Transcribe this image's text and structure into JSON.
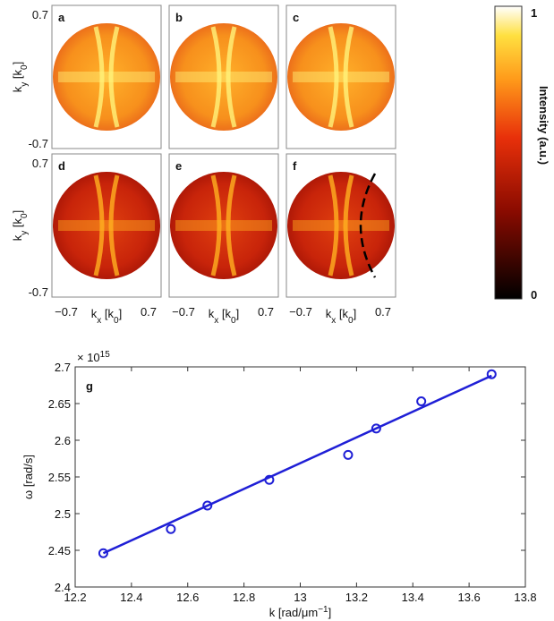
{
  "chart_data": [
    {
      "type": "image-grid",
      "panels": [
        "a",
        "b",
        "c",
        "d",
        "e",
        "f"
      ],
      "xlabel": {
        "text": "k",
        "sub": "x",
        "unit": " [k",
        "unit_sub": "0",
        "close": "]"
      },
      "ylabel": {
        "text": "k",
        "sub": "y",
        "unit": " [k",
        "unit_sub": "0",
        "close": "]"
      },
      "xlim": [
        -0.7,
        0.7
      ],
      "ylim": [
        -0.7,
        0.7
      ],
      "xticks": [
        {
          "value": -0.7,
          "label": "−0.7"
        },
        0.7
      ],
      "yticks": [
        {
          "value": -0.7,
          "label": "-0.7"
        },
        0.7
      ],
      "colorbar": {
        "label": "Intensity (a.u.)",
        "lim": [
          0,
          1
        ],
        "ticks": [
          0,
          1
        ]
      }
    },
    {
      "type": "scatter",
      "panel": "g",
      "xlabel": {
        "text": "k [rad/μm",
        "sup": "−1",
        "close": "]"
      },
      "ylabel": "ω [rad/s]",
      "exponent_label": {
        "base": "× 10",
        "exp": "15"
      },
      "xlim": [
        12.2,
        13.8
      ],
      "xticks": [
        12.2,
        12.4,
        12.6,
        12.8,
        13,
        13.2,
        13.4,
        13.6,
        13.8
      ],
      "ylim": [
        2.4,
        2.7
      ],
      "yticks": [
        2.4,
        2.45,
        2.5,
        2.55,
        2.6,
        2.65,
        2.7
      ],
      "series": [
        {
          "style": "markers",
          "color": "#1f1fd6",
          "x": [
            12.3,
            12.54,
            12.67,
            12.89,
            13.17,
            13.27,
            13.43,
            13.68
          ],
          "values": [
            2.446,
            2.479,
            2.511,
            2.546,
            2.58,
            2.616,
            2.653,
            2.69
          ]
        },
        {
          "style": "line",
          "color": "#1f1fd6",
          "x": [
            12.3,
            13.68
          ],
          "values": [
            2.446,
            2.688
          ]
        }
      ]
    }
  ]
}
